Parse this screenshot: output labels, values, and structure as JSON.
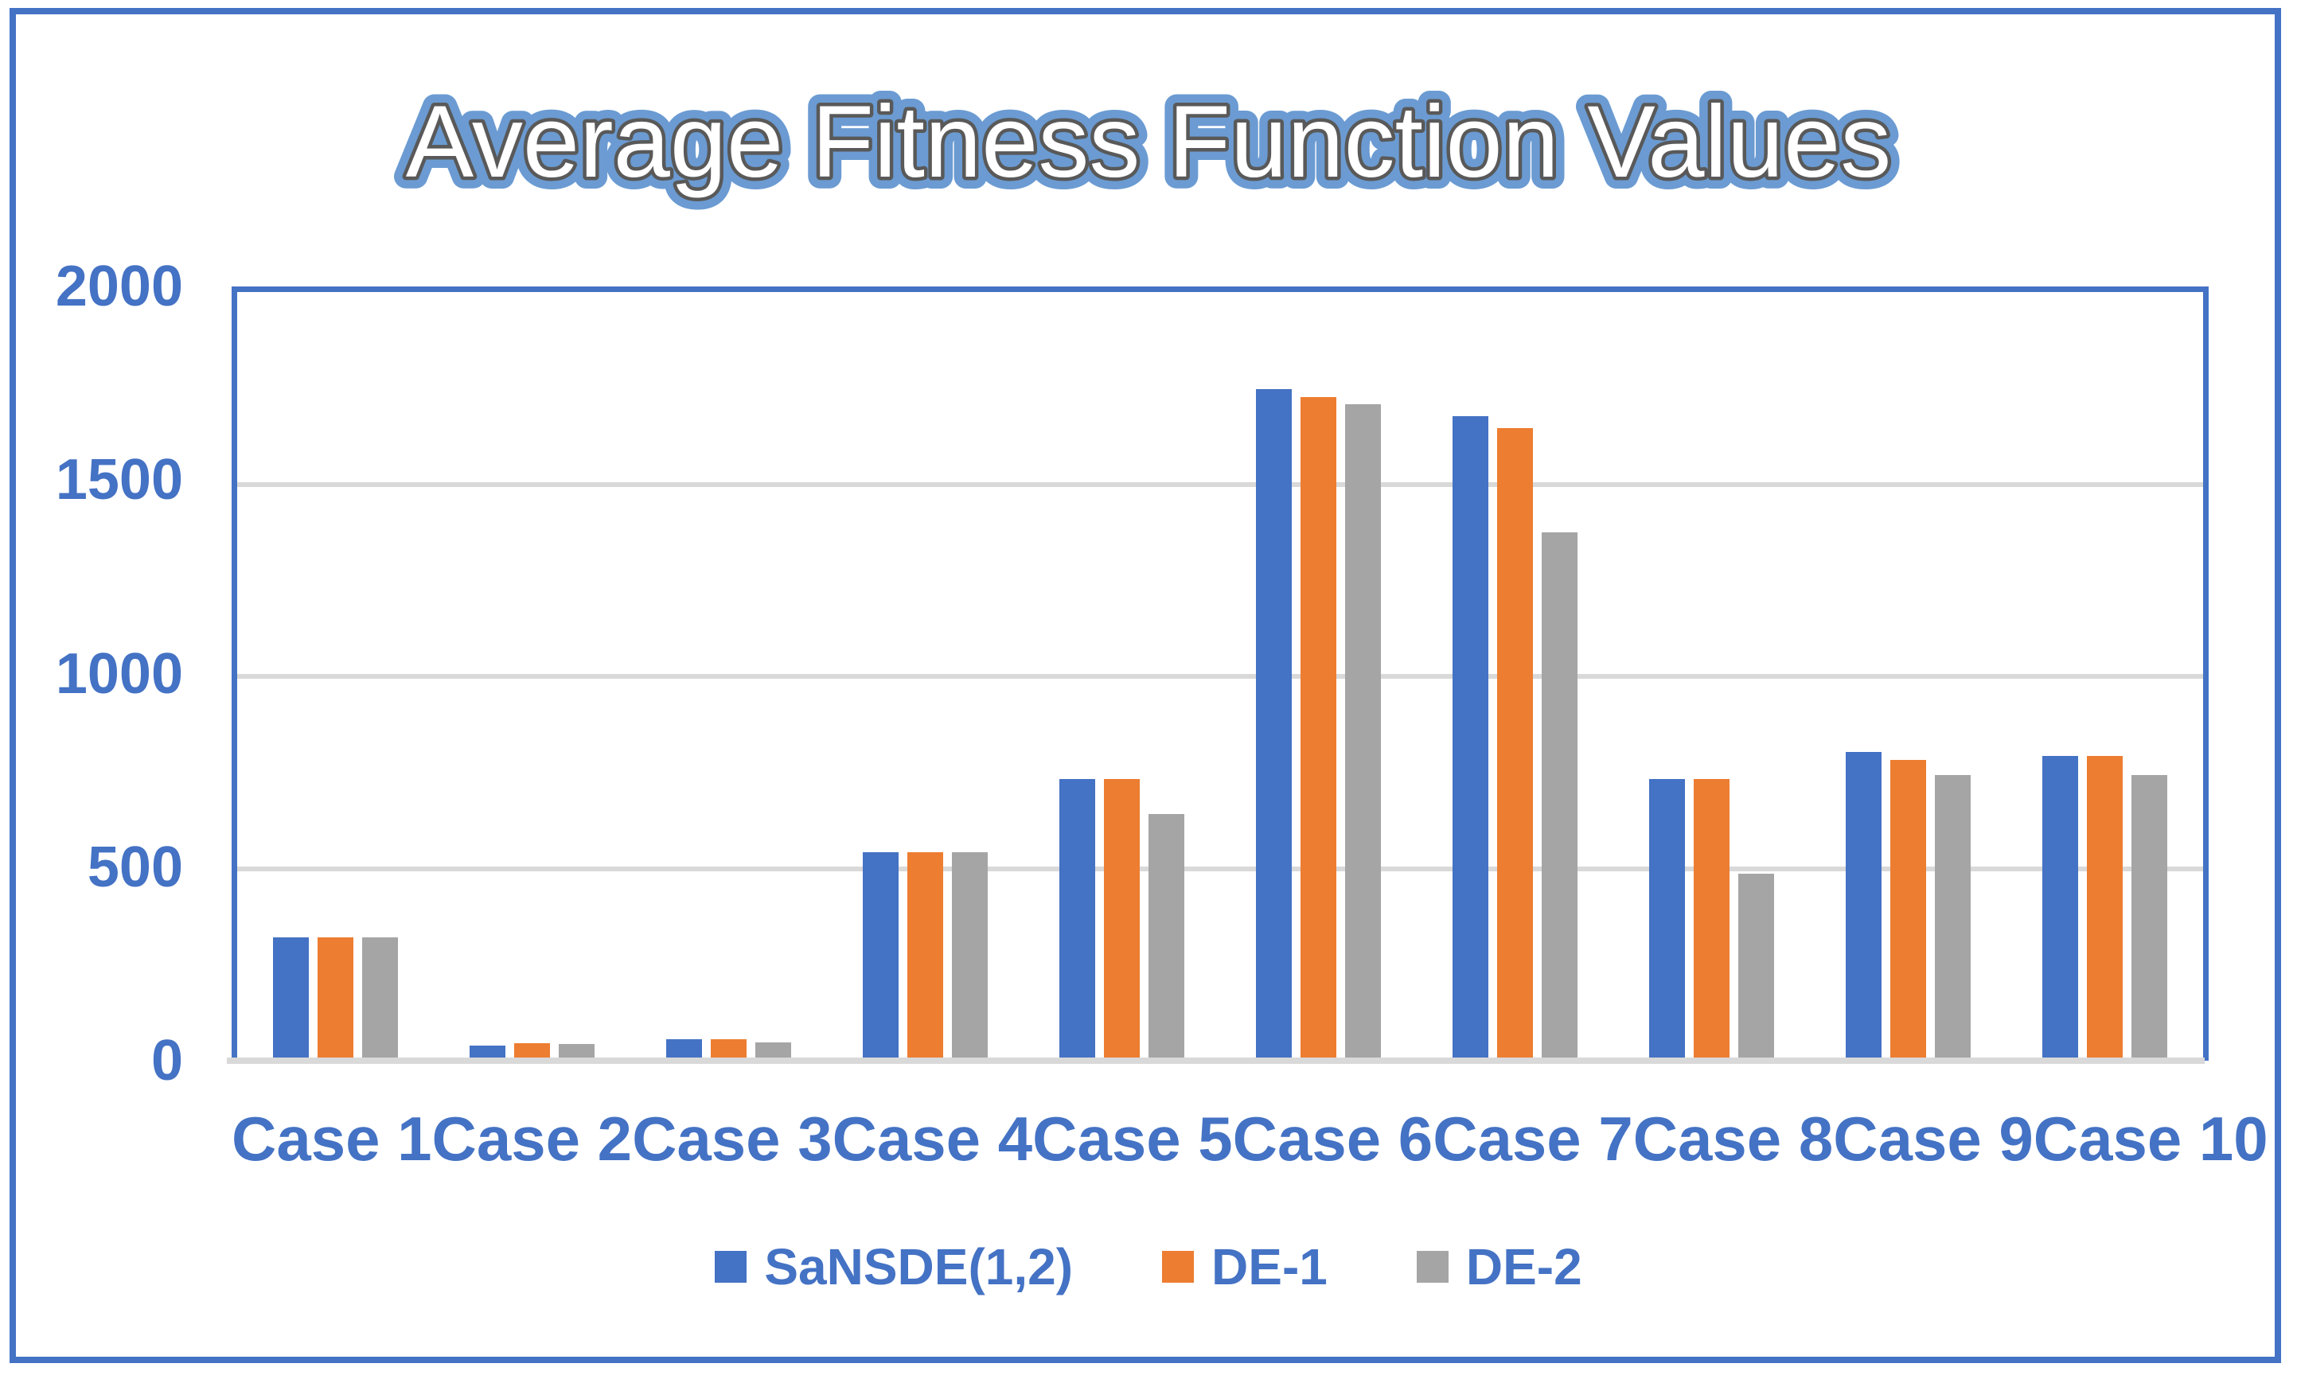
{
  "title": "Average Fitness Function Values",
  "colors": {
    "frame": "#4472C4",
    "axis_text": "#4472C4",
    "gridline": "#D9D9D9",
    "title_glow": "#6B9BD2",
    "title_stroke": "#595959",
    "title_fill": "#FFFFFF",
    "series_blue": "#4472C4",
    "series_orange": "#ED7D31",
    "series_gray": "#A5A5A5"
  },
  "chart_data": {
    "type": "bar",
    "title": "Average Fitness Function Values",
    "xlabel": "",
    "ylabel": "",
    "ylim": [
      0,
      2000
    ],
    "yticks": [
      0,
      500,
      1000,
      1500,
      2000
    ],
    "grid": true,
    "legend_position": "bottom",
    "categories": [
      "Case 1",
      "Case 2",
      "Case 3",
      "Case 4",
      "Case 5",
      "Case 6",
      "Case 7",
      "Case 8",
      "Case 9",
      "Case 10"
    ],
    "series": [
      {
        "name": "SaNSDE(1,2)",
        "color_key": "series_blue",
        "values": [
          320,
          40,
          55,
          540,
          730,
          1740,
          1670,
          730,
          800,
          790
        ]
      },
      {
        "name": "DE-1",
        "color_key": "series_orange",
        "values": [
          320,
          45,
          55,
          540,
          730,
          1720,
          1640,
          730,
          780,
          790
        ]
      },
      {
        "name": "DE-2",
        "color_key": "series_gray",
        "values": [
          320,
          43,
          48,
          540,
          640,
          1700,
          1370,
          485,
          740,
          740
        ]
      }
    ]
  }
}
